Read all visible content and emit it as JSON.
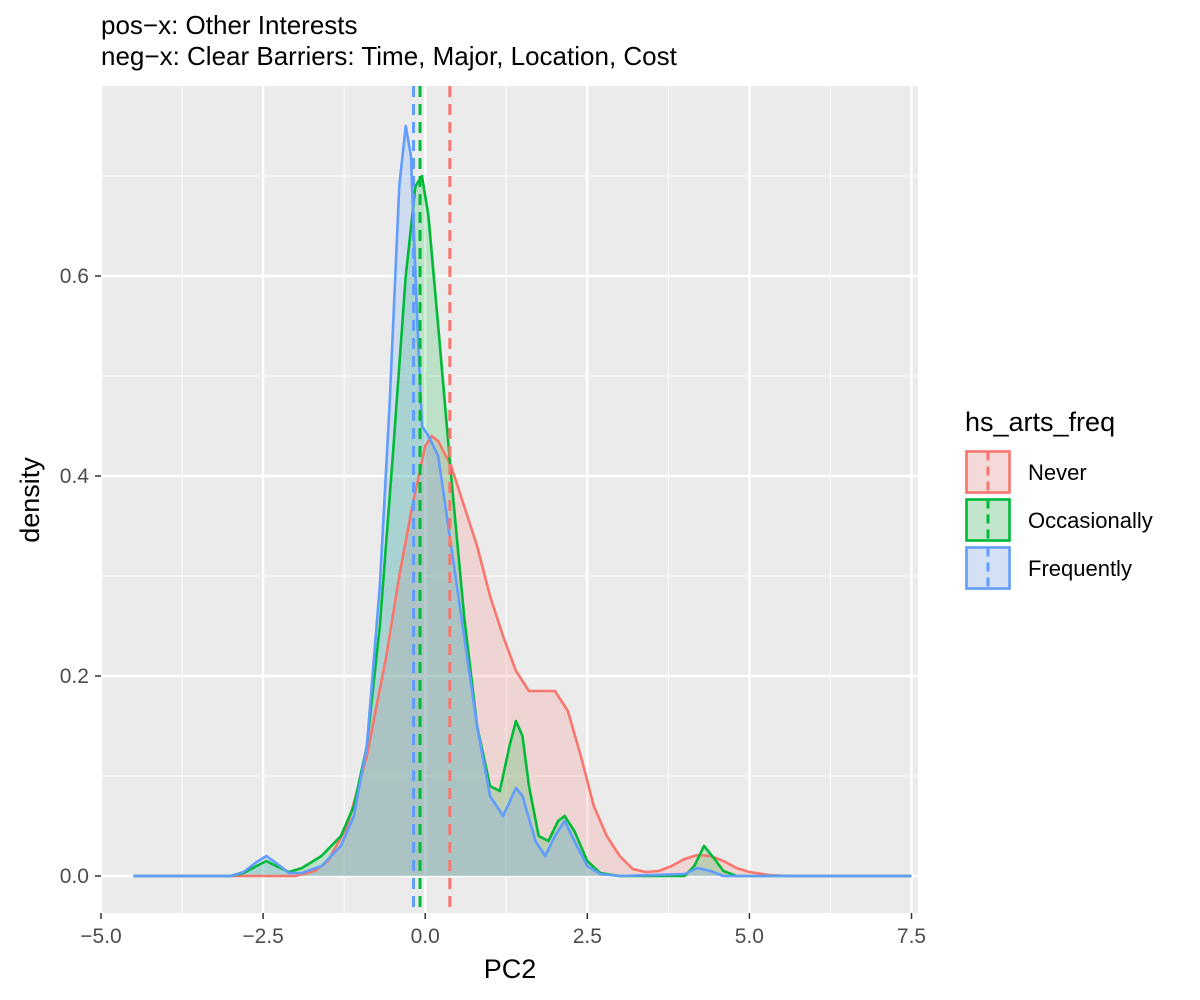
{
  "chart_data": {
    "type": "area",
    "title_lines": [
      "pos−x: Other Interests",
      "neg−x: Clear Barriers: Time, Major, Location, Cost"
    ],
    "xlabel": "PC2",
    "ylabel": "density",
    "xlim": [
      -5.0,
      7.6
    ],
    "ylim": [
      -0.037,
      0.79
    ],
    "x_ticks": [
      -5.0,
      -2.5,
      0.0,
      2.5,
      5.0,
      7.5
    ],
    "x_tick_labels": [
      "−5.0",
      "−2.5",
      "0.0",
      "2.5",
      "5.0",
      "7.5"
    ],
    "y_ticks": [
      0.0,
      0.2,
      0.4,
      0.6
    ],
    "y_tick_labels": [
      "0.0",
      "0.2",
      "0.4",
      "0.6"
    ],
    "grid": true,
    "legend": {
      "title": "hs_arts_freq",
      "position": "right",
      "entries": [
        "Never",
        "Occasionally",
        "Frequently"
      ]
    },
    "series": [
      {
        "name": "Never",
        "color": "#F8766D",
        "mean": 0.38,
        "points": [
          [
            -4.5,
            0.0
          ],
          [
            -2.0,
            0.0
          ],
          [
            -1.7,
            0.005
          ],
          [
            -1.5,
            0.015
          ],
          [
            -1.2,
            0.05
          ],
          [
            -0.9,
            0.12
          ],
          [
            -0.6,
            0.22
          ],
          [
            -0.4,
            0.3
          ],
          [
            -0.2,
            0.37
          ],
          [
            0.0,
            0.43
          ],
          [
            0.1,
            0.44
          ],
          [
            0.2,
            0.435
          ],
          [
            0.4,
            0.41
          ],
          [
            0.6,
            0.37
          ],
          [
            0.8,
            0.33
          ],
          [
            1.0,
            0.28
          ],
          [
            1.2,
            0.24
          ],
          [
            1.4,
            0.205
          ],
          [
            1.6,
            0.185
          ],
          [
            1.8,
            0.185
          ],
          [
            2.0,
            0.185
          ],
          [
            2.2,
            0.165
          ],
          [
            2.4,
            0.12
          ],
          [
            2.6,
            0.07
          ],
          [
            2.8,
            0.04
          ],
          [
            3.0,
            0.02
          ],
          [
            3.2,
            0.007
          ],
          [
            3.4,
            0.004
          ],
          [
            3.6,
            0.005
          ],
          [
            3.8,
            0.01
          ],
          [
            4.0,
            0.017
          ],
          [
            4.2,
            0.021
          ],
          [
            4.4,
            0.02
          ],
          [
            4.6,
            0.015
          ],
          [
            4.8,
            0.008
          ],
          [
            5.0,
            0.004
          ],
          [
            5.3,
            0.001
          ],
          [
            5.6,
            0.0
          ],
          [
            7.5,
            0.0
          ]
        ]
      },
      {
        "name": "Occasionally",
        "color": "#00BA38",
        "mean": -0.08,
        "points": [
          [
            -4.5,
            0.0
          ],
          [
            -3.0,
            0.0
          ],
          [
            -2.8,
            0.003
          ],
          [
            -2.6,
            0.01
          ],
          [
            -2.45,
            0.015
          ],
          [
            -2.3,
            0.01
          ],
          [
            -2.1,
            0.004
          ],
          [
            -1.9,
            0.008
          ],
          [
            -1.6,
            0.02
          ],
          [
            -1.3,
            0.04
          ],
          [
            -1.1,
            0.07
          ],
          [
            -0.9,
            0.13
          ],
          [
            -0.7,
            0.25
          ],
          [
            -0.5,
            0.42
          ],
          [
            -0.3,
            0.6
          ],
          [
            -0.15,
            0.69
          ],
          [
            -0.05,
            0.7
          ],
          [
            0.05,
            0.66
          ],
          [
            0.2,
            0.55
          ],
          [
            0.4,
            0.4
          ],
          [
            0.6,
            0.26
          ],
          [
            0.8,
            0.15
          ],
          [
            1.0,
            0.09
          ],
          [
            1.15,
            0.085
          ],
          [
            1.3,
            0.13
          ],
          [
            1.4,
            0.155
          ],
          [
            1.5,
            0.14
          ],
          [
            1.6,
            0.09
          ],
          [
            1.75,
            0.04
          ],
          [
            1.9,
            0.035
          ],
          [
            2.05,
            0.055
          ],
          [
            2.15,
            0.06
          ],
          [
            2.3,
            0.045
          ],
          [
            2.5,
            0.015
          ],
          [
            2.7,
            0.003
          ],
          [
            3.0,
            0.0
          ],
          [
            4.0,
            0.0
          ],
          [
            4.15,
            0.01
          ],
          [
            4.3,
            0.03
          ],
          [
            4.45,
            0.018
          ],
          [
            4.6,
            0.005
          ],
          [
            4.8,
            0.0
          ],
          [
            7.5,
            0.0
          ]
        ]
      },
      {
        "name": "Frequently",
        "color": "#619CFF",
        "mean": -0.18,
        "points": [
          [
            -4.5,
            0.0
          ],
          [
            -3.0,
            0.0
          ],
          [
            -2.8,
            0.004
          ],
          [
            -2.6,
            0.014
          ],
          [
            -2.45,
            0.02
          ],
          [
            -2.3,
            0.013
          ],
          [
            -2.1,
            0.003
          ],
          [
            -1.9,
            0.003
          ],
          [
            -1.6,
            0.01
          ],
          [
            -1.3,
            0.03
          ],
          [
            -1.1,
            0.06
          ],
          [
            -0.9,
            0.13
          ],
          [
            -0.7,
            0.29
          ],
          [
            -0.55,
            0.47
          ],
          [
            -0.4,
            0.69
          ],
          [
            -0.3,
            0.75
          ],
          [
            -0.22,
            0.72
          ],
          [
            -0.12,
            0.55
          ],
          [
            -0.05,
            0.45
          ],
          [
            0.05,
            0.44
          ],
          [
            0.2,
            0.42
          ],
          [
            0.4,
            0.33
          ],
          [
            0.6,
            0.24
          ],
          [
            0.8,
            0.15
          ],
          [
            1.0,
            0.08
          ],
          [
            1.2,
            0.06
          ],
          [
            1.4,
            0.088
          ],
          [
            1.5,
            0.08
          ],
          [
            1.7,
            0.035
          ],
          [
            1.85,
            0.02
          ],
          [
            2.0,
            0.04
          ],
          [
            2.15,
            0.055
          ],
          [
            2.3,
            0.035
          ],
          [
            2.5,
            0.01
          ],
          [
            2.7,
            0.002
          ],
          [
            3.0,
            0.0
          ],
          [
            4.0,
            0.002
          ],
          [
            4.2,
            0.008
          ],
          [
            4.4,
            0.005
          ],
          [
            4.6,
            0.0
          ],
          [
            7.5,
            0.0
          ]
        ]
      }
    ]
  }
}
